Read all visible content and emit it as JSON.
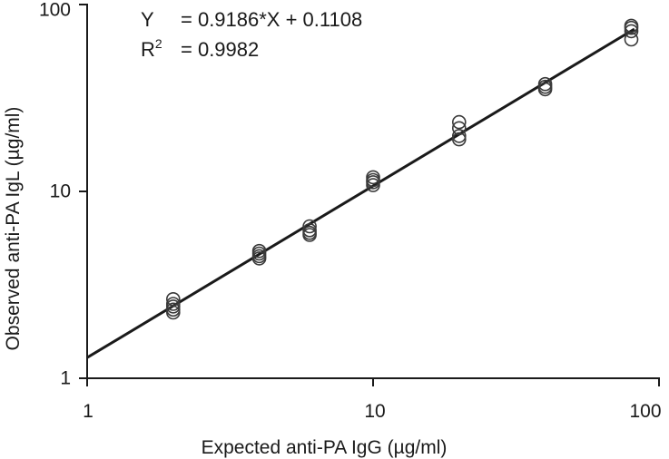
{
  "chart_data": {
    "type": "scatter",
    "title": "",
    "xlabel": "Expected anti-PA IgG (µg/ml)",
    "ylabel": "Observed anti-PA IgL (µg/ml)",
    "x_scale": "log",
    "y_scale": "log",
    "xlim": [
      1,
      100
    ],
    "ylim": [
      1,
      100
    ],
    "x_ticks": [
      1,
      10,
      100
    ],
    "x_tick_labels": [
      "1",
      "10",
      "100"
    ],
    "y_ticks": [
      1,
      10,
      100
    ],
    "y_tick_labels": [
      "1",
      "10",
      "100"
    ],
    "grid": false,
    "legend": "none",
    "series": [
      {
        "marker": "open-circle",
        "points": [
          {
            "x": 2,
            "y": 2.65
          },
          {
            "x": 2,
            "y": 2.5
          },
          {
            "x": 2,
            "y": 2.42
          },
          {
            "x": 2,
            "y": 2.33
          },
          {
            "x": 2,
            "y": 2.25
          },
          {
            "x": 4,
            "y": 4.8
          },
          {
            "x": 4,
            "y": 4.65
          },
          {
            "x": 4,
            "y": 4.5
          },
          {
            "x": 4,
            "y": 4.38
          },
          {
            "x": 6,
            "y": 6.5
          },
          {
            "x": 6,
            "y": 6.2
          },
          {
            "x": 6,
            "y": 6.0
          },
          {
            "x": 6,
            "y": 5.85
          },
          {
            "x": 10,
            "y": 11.9
          },
          {
            "x": 10,
            "y": 11.5
          },
          {
            "x": 10,
            "y": 11.2
          },
          {
            "x": 10,
            "y": 10.8
          },
          {
            "x": 20,
            "y": 23.5
          },
          {
            "x": 20,
            "y": 21.8
          },
          {
            "x": 20,
            "y": 19.8
          },
          {
            "x": 20,
            "y": 19.0
          },
          {
            "x": 40,
            "y": 37.5
          },
          {
            "x": 40,
            "y": 36.3
          },
          {
            "x": 40,
            "y": 35.2
          },
          {
            "x": 80,
            "y": 77
          },
          {
            "x": 80,
            "y": 75
          },
          {
            "x": 80,
            "y": 72
          },
          {
            "x": 80,
            "y": 65
          }
        ]
      }
    ],
    "fit_line": {
      "style": "solid",
      "log_slope": 0.9186,
      "log_intercept": 0.1108
    },
    "annotations": {
      "equation_lhs": "Y",
      "equation_rhs": "= 0.9186*X + 0.1108",
      "r2_base": "R",
      "r2_exp": "2",
      "r2_rhs": "= 0.9982"
    },
    "colors": {
      "ink": "#1a1a1a",
      "marker_stroke": "#3a3a3a",
      "background": "#ffffff"
    }
  }
}
